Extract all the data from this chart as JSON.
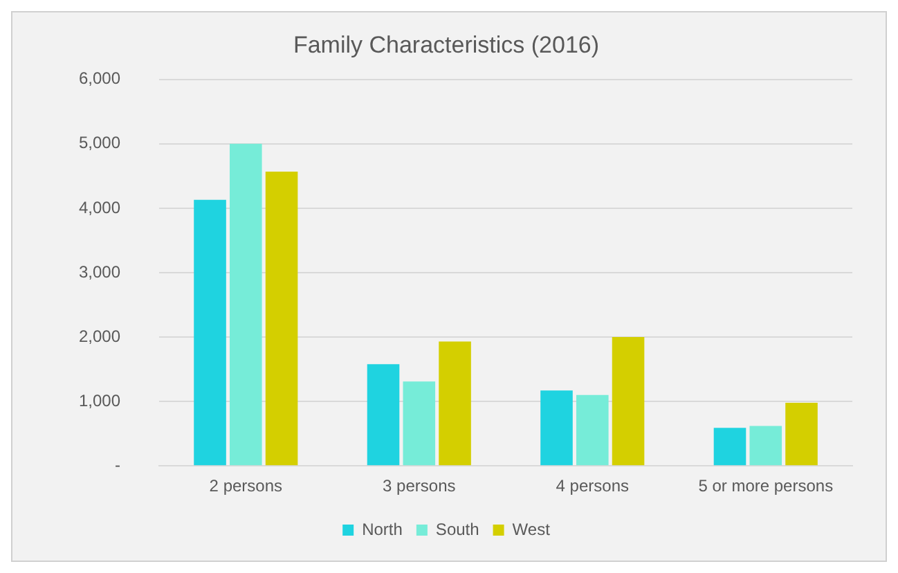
{
  "chart_data": {
    "type": "bar",
    "title": "Family Characteristics (2016)",
    "categories": [
      "2 persons",
      "3 persons",
      "4 persons",
      "5 or more persons"
    ],
    "series": [
      {
        "name": "North",
        "color": "#1fd3e0",
        "values": [
          4130,
          1580,
          1170,
          590
        ]
      },
      {
        "name": "South",
        "color": "#76ecd8",
        "values": [
          5000,
          1310,
          1100,
          620
        ]
      },
      {
        "name": "West",
        "color": "#d4cf00",
        "values": [
          4570,
          1930,
          2000,
          980
        ]
      }
    ],
    "ylim": [
      0,
      6000
    ],
    "yticks": [
      {
        "value": 0,
        "label": "-"
      },
      {
        "value": 1000,
        "label": "1,000"
      },
      {
        "value": 2000,
        "label": "2,000"
      },
      {
        "value": 3000,
        "label": "3,000"
      },
      {
        "value": 4000,
        "label": "4,000"
      },
      {
        "value": 5000,
        "label": "5,000"
      },
      {
        "value": 6000,
        "label": "6,000"
      }
    ],
    "grid": "y",
    "legend": "bottom"
  }
}
